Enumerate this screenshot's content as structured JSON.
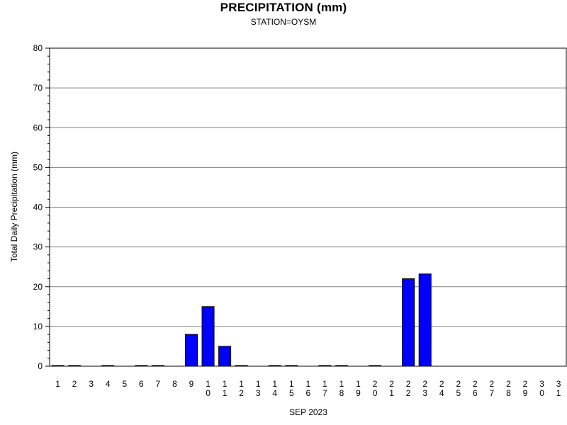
{
  "chart_data": {
    "type": "bar",
    "title": "PRECIPITATION (mm)",
    "subtitle": "STATION=OYSM",
    "xlabel": "SEP 2023",
    "ylabel": "Total Daily Precipitation (mm)",
    "ylim": [
      0,
      80
    ],
    "yticks": [
      0,
      10,
      20,
      30,
      40,
      50,
      60,
      70,
      80
    ],
    "grid": true,
    "bar_color": "#0000ff",
    "categories": [
      "1",
      "2",
      "3",
      "4",
      "5",
      "6",
      "7",
      "8",
      "9",
      "10",
      "11",
      "12",
      "13",
      "14",
      "15",
      "16",
      "17",
      "18",
      "19",
      "20",
      "21",
      "22",
      "23",
      "24",
      "25",
      "26",
      "27",
      "28",
      "29",
      "30",
      "31"
    ],
    "values": [
      0.1,
      0.1,
      null,
      0.1,
      null,
      0.1,
      0.1,
      null,
      8,
      15,
      5,
      0.1,
      null,
      0.1,
      0.1,
      null,
      0.1,
      0.1,
      null,
      0.1,
      null,
      22,
      23.2,
      null,
      null,
      null,
      null,
      null,
      null,
      null,
      null
    ]
  }
}
